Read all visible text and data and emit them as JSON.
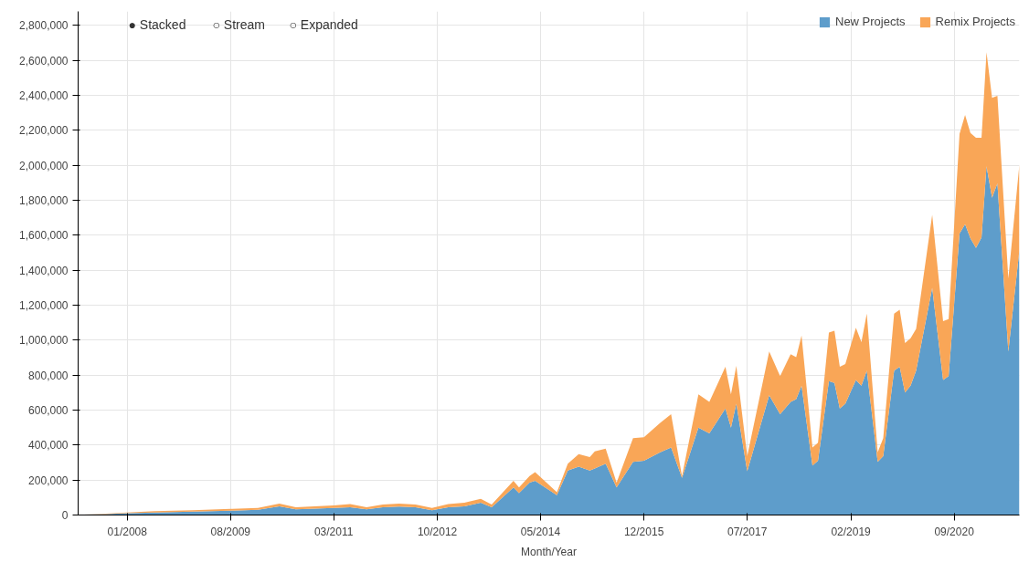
{
  "chart_data": {
    "type": "area",
    "stacked": true,
    "xlabel": "Month/Year",
    "annotations": [
      "● Stacked",
      "○ Stream",
      "○ Expanded"
    ],
    "x": [
      "2007-05",
      "2007-09",
      "2008-01",
      "2008-06",
      "2009-01",
      "2009-08",
      "2010-01",
      "2010-05",
      "2010-08",
      "2011-03",
      "2011-06",
      "2011-09",
      "2011-12",
      "2012-03",
      "2012-06",
      "2012-09",
      "2012-12",
      "2013-03",
      "2013-06",
      "2013-08",
      "2013-12",
      "2014-01",
      "2014-03",
      "2014-04",
      "2014-08",
      "2014-10",
      "2014-12",
      "2015-02",
      "2015-03",
      "2015-05",
      "2015-07",
      "2015-10",
      "2015-12",
      "2016-03",
      "2016-05",
      "2016-07",
      "2016-10",
      "2016-12",
      "2017-03",
      "2017-04",
      "2017-05",
      "2017-07",
      "2017-11",
      "2018-01",
      "2018-03",
      "2018-04",
      "2018-05",
      "2018-07",
      "2018-08",
      "2018-10",
      "2018-11",
      "2018-12",
      "2019-01",
      "2019-03",
      "2019-04",
      "2019-05",
      "2019-07",
      "2019-08",
      "2019-10",
      "2019-11",
      "2019-12",
      "2020-01",
      "2020-02",
      "2020-05",
      "2020-07",
      "2020-08",
      "2020-10",
      "2020-11",
      "2020-12",
      "2021-01",
      "2021-02",
      "2021-03",
      "2021-04",
      "2021-05",
      "2021-07",
      "2021-09"
    ],
    "series": [
      {
        "name": "New Projects",
        "color": "#5e9dcb",
        "values": [
          2000,
          5000,
          10000,
          15000,
          20000,
          25000,
          30000,
          50000,
          32000,
          40000,
          45000,
          32000,
          44000,
          48000,
          44000,
          28000,
          45000,
          50000,
          70000,
          45000,
          158000,
          125000,
          185000,
          196000,
          114000,
          255000,
          277000,
          255000,
          266000,
          293000,
          158000,
          304000,
          310000,
          359000,
          386000,
          212000,
          500000,
          467000,
          609000,
          500000,
          636000,
          250000,
          685000,
          576000,
          647000,
          663000,
          739000,
          283000,
          310000,
          766000,
          755000,
          609000,
          636000,
          772000,
          739000,
          826000,
          304000,
          337000,
          826000,
          848000,
          701000,
          739000,
          826000,
          1299000,
          772000,
          794000,
          1609000,
          1663000,
          1582000,
          1527000,
          1587000,
          1995000,
          1815000,
          1897000,
          935000,
          1516000
        ]
      },
      {
        "name": "Remix Projects",
        "color": "#f9a657",
        "values": [
          1000,
          3000,
          5000,
          7000,
          8000,
          10000,
          10000,
          15000,
          13000,
          15000,
          17000,
          13000,
          16000,
          17000,
          16000,
          12000,
          17000,
          20000,
          22000,
          15000,
          38000,
          33000,
          38000,
          49000,
          16000,
          38000,
          71000,
          76000,
          98000,
          87000,
          27000,
          136000,
          135000,
          168000,
          190000,
          11000,
          190000,
          180000,
          239000,
          190000,
          217000,
          87000,
          250000,
          218000,
          272000,
          239000,
          288000,
          103000,
          103000,
          278000,
          299000,
          239000,
          228000,
          299000,
          250000,
          326000,
          55000,
          103000,
          326000,
          326000,
          283000,
          272000,
          239000,
          418000,
          337000,
          326000,
          570000,
          625000,
          603000,
          631000,
          571000,
          652000,
          571000,
          500000,
          418000,
          489000
        ]
      }
    ],
    "xlim": [
      "2007-04",
      "2021-09"
    ],
    "xticks": [
      {
        "value": "2008-01",
        "label": "01/2008"
      },
      {
        "value": "2009-08",
        "label": "08/2009"
      },
      {
        "value": "2011-03",
        "label": "03/2011"
      },
      {
        "value": "2012-10",
        "label": "10/2012"
      },
      {
        "value": "2014-05",
        "label": "05/2014"
      },
      {
        "value": "2015-12",
        "label": "12/2015"
      },
      {
        "value": "2017-07",
        "label": "07/2017"
      },
      {
        "value": "2019-02",
        "label": "02/2019"
      },
      {
        "value": "2020-09",
        "label": "09/2020"
      }
    ],
    "ylim": [
      0,
      2880000
    ],
    "yticks": [
      0,
      {
        "value": 200000,
        "label": "200,000"
      },
      {
        "value": 400000,
        "label": "400,000"
      },
      {
        "value": 600000,
        "label": "600,000"
      },
      {
        "value": 800000,
        "label": "800,000"
      },
      {
        "value": 1000000,
        "label": "1,000,000"
      },
      {
        "value": 1200000,
        "label": "1,200,000"
      },
      {
        "value": 1400000,
        "label": "1,400,000"
      },
      {
        "value": 1600000,
        "label": "1,600,000"
      },
      {
        "value": 1800000,
        "label": "1,800,000"
      },
      {
        "value": 2000000,
        "label": "2,000,000"
      },
      {
        "value": 2200000,
        "label": "2,200,000"
      },
      {
        "value": 2400000,
        "label": "2,400,000"
      },
      {
        "value": 2600000,
        "label": "2,600,000"
      },
      {
        "value": 2800000,
        "label": "2,800,000"
      }
    ],
    "grid": true,
    "legend": "top right"
  }
}
